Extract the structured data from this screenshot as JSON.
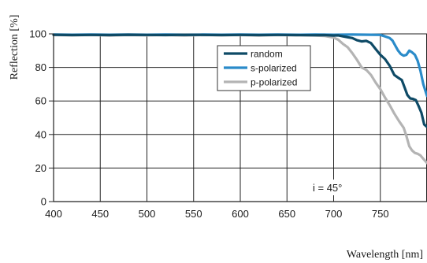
{
  "chart_data": {
    "type": "line",
    "xlabel": "Wavelength [nm]",
    "ylabel": "Reflection [%]",
    "xlim": [
      400,
      800
    ],
    "ylim": [
      0,
      100
    ],
    "xticks": [
      400,
      450,
      500,
      550,
      600,
      650,
      700,
      750
    ],
    "yticks": [
      0,
      20,
      40,
      60,
      80,
      100
    ],
    "grid": true,
    "legend_position": "top-right",
    "annotation": "i = 45°",
    "series": [
      {
        "name": "random",
        "color": "#0e4a66",
        "x": [
          400,
          420,
          440,
          460,
          480,
          500,
          520,
          540,
          560,
          580,
          600,
          620,
          640,
          660,
          680,
          690,
          700,
          705,
          710,
          715,
          720,
          725,
          730,
          735,
          740,
          745,
          750,
          755,
          760,
          765,
          770,
          773,
          776,
          779,
          782,
          785,
          788,
          791,
          794,
          797,
          800
        ],
        "y": [
          99.5,
          99.3,
          99.4,
          99.3,
          99.5,
          99.4,
          99.3,
          99.5,
          99.4,
          99.3,
          99.4,
          99.3,
          99.4,
          99.3,
          99.2,
          99.3,
          99.0,
          99.1,
          98.5,
          98.0,
          97.5,
          96.2,
          95.5,
          95.8,
          94.5,
          91.0,
          87.5,
          85.0,
          81.0,
          75.5,
          73.5,
          72.5,
          68.0,
          63.5,
          61.5,
          61.2,
          60.5,
          57.0,
          53.0,
          46.0,
          44.5
        ]
      },
      {
        "name": "s-polarized",
        "color": "#2a8bc9",
        "x": [
          400,
          420,
          440,
          460,
          480,
          500,
          520,
          540,
          560,
          580,
          600,
          620,
          640,
          660,
          680,
          700,
          720,
          740,
          750,
          755,
          760,
          763,
          766,
          769,
          772,
          775,
          778,
          781,
          784,
          787,
          790,
          793,
          796,
          800
        ],
        "y": [
          99.6,
          99.5,
          99.6,
          99.5,
          99.6,
          99.5,
          99.6,
          99.5,
          99.6,
          99.5,
          99.6,
          99.5,
          99.6,
          99.5,
          99.6,
          99.5,
          99.6,
          99.5,
          99.4,
          98.5,
          97.5,
          96.0,
          93.0,
          90.0,
          88.0,
          87.0,
          87.5,
          90.0,
          89.0,
          87.5,
          84.0,
          78.0,
          70.0,
          63.0
        ]
      },
      {
        "name": "p-polarized",
        "color": "#b4b4b4",
        "x": [
          400,
          420,
          440,
          460,
          480,
          500,
          520,
          540,
          560,
          580,
          600,
          620,
          640,
          660,
          680,
          690,
          700,
          705,
          710,
          715,
          720,
          725,
          730,
          735,
          740,
          745,
          750,
          755,
          760,
          765,
          770,
          775,
          778,
          781,
          784,
          787,
          790,
          793,
          796,
          800
        ],
        "y": [
          99.3,
          99.1,
          99.3,
          99.0,
          99.3,
          99.1,
          99.3,
          99.0,
          99.3,
          99.1,
          99.3,
          99.0,
          99.3,
          99.1,
          99.0,
          98.8,
          97.8,
          96.5,
          94.0,
          92.0,
          88.5,
          84.5,
          80.0,
          78.5,
          75.5,
          71.0,
          67.0,
          62.0,
          57.5,
          52.5,
          48.0,
          44.0,
          39.0,
          33.0,
          30.5,
          29.0,
          28.5,
          27.5,
          25.5,
          23.0
        ]
      }
    ]
  }
}
